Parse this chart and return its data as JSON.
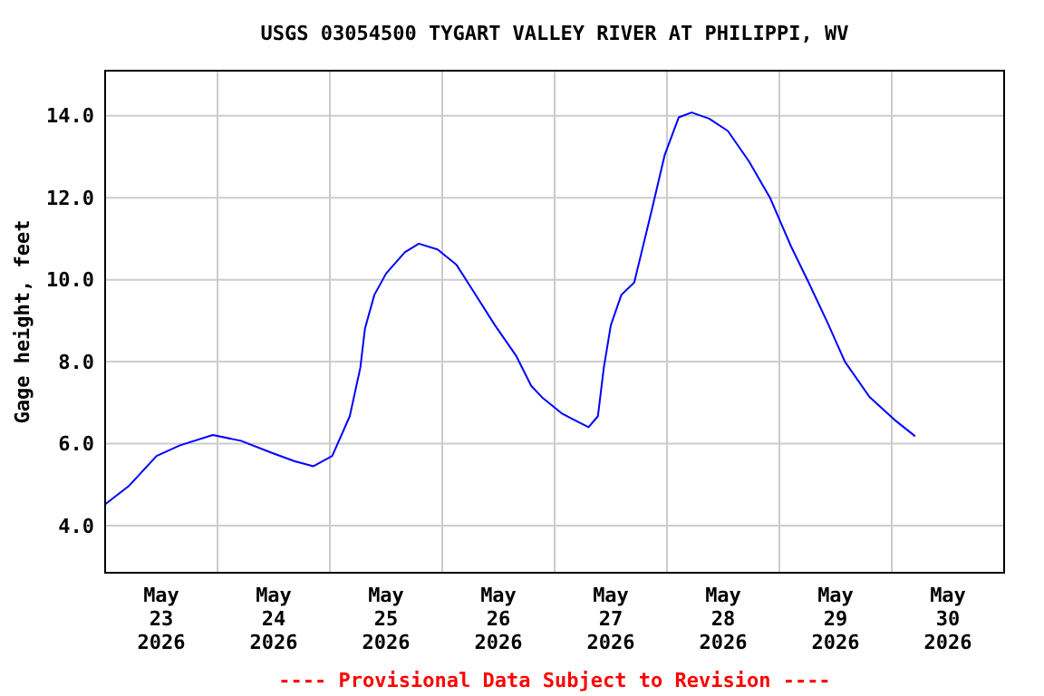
{
  "chart_data": {
    "type": "line",
    "title": "USGS 03054500 TYGART VALLEY RIVER AT PHILIPPI, WV",
    "ylabel": "Gage height, feet",
    "annotations": [
      "---- Provisional Data Subject to Revision ----"
    ],
    "xlim": [
      "2026-05-23T00:00",
      "2026-05-31T00:00"
    ],
    "xticks": [
      {
        "value": "2026-05-23T12:00",
        "label": "May\n23\n2026"
      },
      {
        "value": "2026-05-24T12:00",
        "label": "May\n24\n2026"
      },
      {
        "value": "2026-05-25T12:00",
        "label": "May\n25\n2026"
      },
      {
        "value": "2026-05-26T12:00",
        "label": "May\n26\n2026"
      },
      {
        "value": "2026-05-27T12:00",
        "label": "May\n27\n2026"
      },
      {
        "value": "2026-05-28T12:00",
        "label": "May\n28\n2026"
      },
      {
        "value": "2026-05-29T12:00",
        "label": "May\n29\n2026"
      },
      {
        "value": "2026-05-30T12:00",
        "label": "May\n30\n2026"
      },
      {
        "value": "2026-05-24T00:00",
        "label": null
      },
      {
        "value": "2026-05-25T00:00",
        "label": null
      },
      {
        "value": "2026-05-26T00:00",
        "label": null
      },
      {
        "value": "2026-05-27T00:00",
        "label": null
      },
      {
        "value": "2026-05-28T00:00",
        "label": null
      },
      {
        "value": "2026-05-29T00:00",
        "label": null
      },
      {
        "value": "2026-05-30T00:00",
        "label": null
      }
    ],
    "ylim": [
      2.85,
      15.1
    ],
    "yticks": [
      {
        "value": 4,
        "label": "4.0"
      },
      {
        "value": 6,
        "label": "6.0"
      },
      {
        "value": 8,
        "label": "8.0"
      },
      {
        "value": 10,
        "label": "10.0"
      },
      {
        "value": 12,
        "label": "12.0"
      },
      {
        "value": 14,
        "label": "14.0"
      }
    ],
    "grid": true,
    "series": [
      {
        "color": "#0000ff",
        "x": [
          "2026-05-23T00:00",
          "2026-05-23T05:00",
          "2026-05-23T11:00",
          "2026-05-23T16:00",
          "2026-05-23T23:00",
          "2026-05-24T05:00",
          "2026-05-24T11:30",
          "2026-05-24T16:30",
          "2026-05-24T20:30",
          "2026-05-25T00:30",
          "2026-05-25T04:15",
          "2026-05-25T06:30",
          "2026-05-25T07:30",
          "2026-05-25T09:30",
          "2026-05-25T12:00",
          "2026-05-25T16:00",
          "2026-05-25T19:00",
          "2026-05-25T23:00",
          "2026-05-26T03:00",
          "2026-05-26T06:45",
          "2026-05-26T11:15",
          "2026-05-26T15:45",
          "2026-05-26T19:00",
          "2026-05-26T21:30",
          "2026-05-27T01:30",
          "2026-05-27T04:00",
          "2026-05-27T07:15",
          "2026-05-27T09:15",
          "2026-05-27T10:30",
          "2026-05-27T12:00",
          "2026-05-27T14:15",
          "2026-05-27T17:00",
          "2026-05-27T18:15",
          "2026-05-27T20:45",
          "2026-05-27T23:30",
          "2026-05-28T02:30",
          "2026-05-28T05:15",
          "2026-05-28T09:00",
          "2026-05-28T13:00",
          "2026-05-28T17:30",
          "2026-05-28T22:00",
          "2026-05-29T02:30",
          "2026-05-29T06:15",
          "2026-05-29T10:15",
          "2026-05-29T14:00",
          "2026-05-29T19:15",
          "2026-05-30T00:30",
          "2026-05-30T05:00"
        ],
        "values": [
          4.52,
          4.96,
          5.7,
          5.96,
          6.21,
          6.07,
          5.78,
          5.57,
          5.45,
          5.7,
          6.67,
          7.85,
          8.81,
          9.63,
          10.15,
          10.67,
          10.88,
          10.74,
          10.37,
          9.7,
          8.89,
          8.15,
          7.41,
          7.11,
          6.74,
          6.59,
          6.4,
          6.67,
          7.85,
          8.89,
          9.63,
          9.93,
          10.52,
          11.7,
          13.04,
          13.96,
          14.08,
          13.93,
          13.63,
          12.89,
          12.0,
          10.81,
          9.93,
          8.96,
          8.0,
          7.14,
          6.59,
          6.18
        ]
      }
    ]
  }
}
